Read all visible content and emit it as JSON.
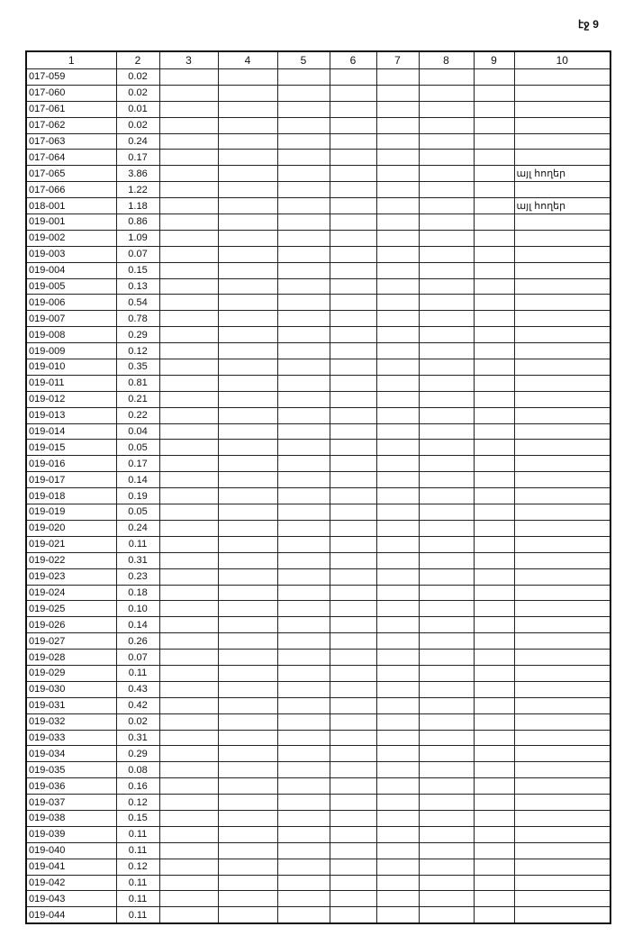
{
  "page_label": "էջ 9",
  "table": {
    "headers": [
      "1",
      "2",
      "3",
      "4",
      "5",
      "6",
      "7",
      "8",
      "9",
      "10"
    ],
    "rows": [
      [
        "017-059",
        "0.02",
        ""
      ],
      [
        "017-060",
        "0.02",
        ""
      ],
      [
        "017-061",
        "0.01",
        ""
      ],
      [
        "017-062",
        "0.02",
        ""
      ],
      [
        "017-063",
        "0.24",
        ""
      ],
      [
        "017-064",
        "0.17",
        ""
      ],
      [
        "017-065",
        "3.86",
        "այլ հողեր"
      ],
      [
        "017-066",
        "1.22",
        ""
      ],
      [
        "018-001",
        "1.18",
        "այլ հողեր"
      ],
      [
        "019-001",
        "0.86",
        ""
      ],
      [
        "019-002",
        "1.09",
        ""
      ],
      [
        "019-003",
        "0.07",
        ""
      ],
      [
        "019-004",
        "0.15",
        ""
      ],
      [
        "019-005",
        "0.13",
        ""
      ],
      [
        "019-006",
        "0.54",
        ""
      ],
      [
        "019-007",
        "0.78",
        ""
      ],
      [
        "019-008",
        "0.29",
        ""
      ],
      [
        "019-009",
        "0.12",
        ""
      ],
      [
        "019-010",
        "0.35",
        ""
      ],
      [
        "019-011",
        "0.81",
        ""
      ],
      [
        "019-012",
        "0.21",
        ""
      ],
      [
        "019-013",
        "0.22",
        ""
      ],
      [
        "019-014",
        "0.04",
        ""
      ],
      [
        "019-015",
        "0.05",
        ""
      ],
      [
        "019-016",
        "0.17",
        ""
      ],
      [
        "019-017",
        "0.14",
        ""
      ],
      [
        "019-018",
        "0.19",
        ""
      ],
      [
        "019-019",
        "0.05",
        ""
      ],
      [
        "019-020",
        "0.24",
        ""
      ],
      [
        "019-021",
        "0.11",
        ""
      ],
      [
        "019-022",
        "0.31",
        ""
      ],
      [
        "019-023",
        "0.23",
        ""
      ],
      [
        "019-024",
        "0.18",
        ""
      ],
      [
        "019-025",
        "0.10",
        ""
      ],
      [
        "019-026",
        "0.14",
        ""
      ],
      [
        "019-027",
        "0.26",
        ""
      ],
      [
        "019-028",
        "0.07",
        ""
      ],
      [
        "019-029",
        "0.11",
        ""
      ],
      [
        "019-030",
        "0.43",
        ""
      ],
      [
        "019-031",
        "0.42",
        ""
      ],
      [
        "019-032",
        "0.02",
        ""
      ],
      [
        "019-033",
        "0.31",
        ""
      ],
      [
        "019-034",
        "0.29",
        ""
      ],
      [
        "019-035",
        "0.08",
        ""
      ],
      [
        "019-036",
        "0.16",
        ""
      ],
      [
        "019-037",
        "0.12",
        ""
      ],
      [
        "019-038",
        "0.15",
        ""
      ],
      [
        "019-039",
        "0.11",
        ""
      ],
      [
        "019-040",
        "0.11",
        ""
      ],
      [
        "019-041",
        "0.12",
        ""
      ],
      [
        "019-042",
        "0.11",
        ""
      ],
      [
        "019-043",
        "0.11",
        ""
      ],
      [
        "019-044",
        "0.11",
        ""
      ]
    ]
  }
}
